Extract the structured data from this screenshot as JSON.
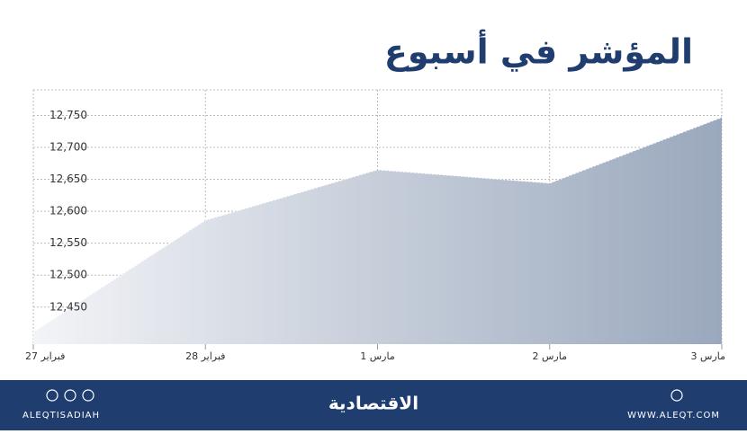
{
  "chart_data": {
    "type": "area",
    "title": "المؤشر في أسبوع",
    "categories": [
      "27 فبراير",
      "28 فبراير",
      "1 مارس",
      "2 مارس",
      "3 مارس"
    ],
    "values": [
      12411,
      12586,
      12665,
      12644,
      12747
    ],
    "color": "#9aa8bd",
    "ylim": [
      12392,
      12790
    ],
    "yticks": [
      {
        "value": 12450,
        "label": "12,450"
      },
      {
        "value": 12500,
        "label": "12,500"
      },
      {
        "value": 12550,
        "label": "12,550"
      },
      {
        "value": 12600,
        "label": "12,600"
      },
      {
        "value": 12650,
        "label": "12,650"
      },
      {
        "value": 12700,
        "label": "12,700"
      },
      {
        "value": 12750,
        "label": "12,750"
      }
    ],
    "grid": true
  },
  "footer": {
    "handle": "ALEQTISADIAH",
    "brand": "الاقتصادية",
    "website": "WWW.ALEQT.COM"
  }
}
